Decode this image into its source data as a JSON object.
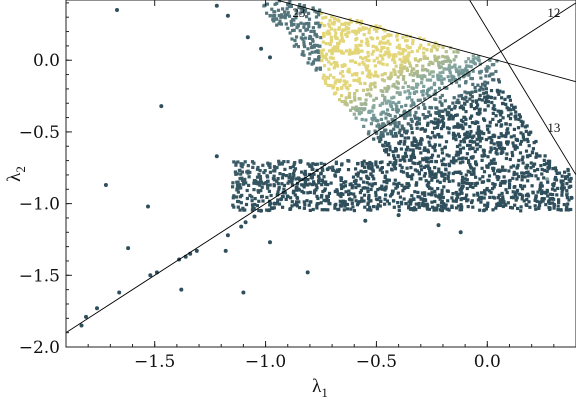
{
  "chart_data": {
    "type": "scatter",
    "title": "",
    "xlabel": "λ",
    "xlabel_subscript": "1",
    "ylabel": "λ",
    "ylabel_subscript": "2",
    "xlim": [
      -1.9,
      0.4
    ],
    "ylim": [
      -2.0,
      0.42
    ],
    "grid": false,
    "legend": "none",
    "x_ticks": [
      {
        "value": -1.5,
        "label": "−1.5"
      },
      {
        "value": -1.0,
        "label": "−1.0"
      },
      {
        "value": -0.5,
        "label": "−0.5"
      },
      {
        "value": 0.0,
        "label": "0.0"
      }
    ],
    "y_ticks": [
      {
        "value": 0.0,
        "label": "0.0"
      },
      {
        "value": -0.5,
        "label": "−0.5"
      },
      {
        "value": -1.0,
        "label": "−1.0"
      },
      {
        "value": -1.5,
        "label": "−1.5"
      },
      {
        "value": -2.0,
        "label": "−2.0"
      }
    ],
    "colors": {
      "point_dark": "#2f4f5c",
      "point_mid": "#7fa3a0",
      "point_light": "#e3d679",
      "line": "#000000"
    },
    "reference_lines": [
      {
        "label": "23",
        "from": [
          -1.9,
          -1.9
        ],
        "to": [
          0.4,
          0.4
        ],
        "label_at": [
          -0.85,
          0.3
        ]
      },
      {
        "label": "12",
        "from": [
          -0.95,
          0.42
        ],
        "to": [
          0.4,
          -0.15
        ],
        "label_at": [
          0.3,
          0.3
        ]
      },
      {
        "label": "13",
        "from": [
          -0.08,
          0.42
        ],
        "to": [
          0.4,
          -0.8
        ],
        "label_at": [
          0.3,
          -0.5
        ]
      }
    ],
    "points": [
      {
        "x": -1.83,
        "y": -1.85,
        "tone": 0
      },
      {
        "x": -1.81,
        "y": -1.79,
        "tone": 0
      },
      {
        "x": -1.76,
        "y": -1.73,
        "tone": 0
      },
      {
        "x": -1.66,
        "y": -1.62,
        "tone": 0
      },
      {
        "x": -1.52,
        "y": -1.5,
        "tone": 0
      },
      {
        "x": -1.49,
        "y": -1.48,
        "tone": 0
      },
      {
        "x": -1.39,
        "y": -1.39,
        "tone": 0
      },
      {
        "x": -1.36,
        "y": -1.37,
        "tone": 0
      },
      {
        "x": -1.34,
        "y": -1.35,
        "tone": 0
      },
      {
        "x": -1.31,
        "y": -1.33,
        "tone": 0
      },
      {
        "x": -1.17,
        "y": -1.22,
        "tone": 0
      },
      {
        "x": -1.11,
        "y": -1.16,
        "tone": 0
      },
      {
        "x": -1.09,
        "y": -1.13,
        "tone": 0
      },
      {
        "x": -1.05,
        "y": -1.09,
        "tone": 0
      },
      {
        "x": -1.02,
        "y": -1.05,
        "tone": 0
      },
      {
        "x": -0.96,
        "y": -1.0,
        "tone": 0
      },
      {
        "x": -0.93,
        "y": -0.97,
        "tone": 0
      },
      {
        "x": -0.9,
        "y": -0.95,
        "tone": 0
      },
      {
        "x": -0.86,
        "y": -0.9,
        "tone": 0
      },
      {
        "x": -0.82,
        "y": -0.86,
        "tone": 0
      },
      {
        "x": -0.79,
        "y": -0.82,
        "tone": 0
      },
      {
        "x": -0.75,
        "y": -0.79,
        "tone": 0
      },
      {
        "x": -0.72,
        "y": -0.76,
        "tone": 0
      },
      {
        "x": -1.67,
        "y": 0.35,
        "tone": 0
      },
      {
        "x": -1.47,
        "y": -0.32,
        "tone": 0
      },
      {
        "x": -1.72,
        "y": -0.87,
        "tone": 0
      },
      {
        "x": -1.53,
        "y": -1.02,
        "tone": 0
      },
      {
        "x": -1.62,
        "y": -1.31,
        "tone": 0
      },
      {
        "x": -1.38,
        "y": -1.6,
        "tone": 0
      },
      {
        "x": -1.18,
        "y": -1.33,
        "tone": 0
      },
      {
        "x": -1.1,
        "y": -1.62,
        "tone": 0
      },
      {
        "x": -0.81,
        "y": -1.48,
        "tone": 0
      },
      {
        "x": -0.98,
        "y": -1.27,
        "tone": 0
      },
      {
        "x": -1.22,
        "y": -0.67,
        "tone": 0
      },
      {
        "x": -0.92,
        "y": -0.8,
        "tone": 0
      },
      {
        "x": -1.22,
        "y": 0.38,
        "tone": 0
      },
      {
        "x": -1.17,
        "y": 0.31,
        "tone": 0
      },
      {
        "x": -1.08,
        "y": 0.16,
        "tone": 0
      },
      {
        "x": -1.02,
        "y": 0.08,
        "tone": 0
      },
      {
        "x": -0.98,
        "y": 0.02,
        "tone": 0
      },
      {
        "x": -0.55,
        "y": -1.12,
        "tone": 0
      },
      {
        "x": -0.4,
        "y": -1.08,
        "tone": 0
      },
      {
        "x": -0.22,
        "y": -1.15,
        "tone": 0
      },
      {
        "x": -0.12,
        "y": -1.2,
        "tone": 0
      },
      {
        "x": -0.62,
        "y": -0.97,
        "tone": 0
      },
      {
        "x": 0.05,
        "y": -1.0,
        "tone": 0
      },
      {
        "x": 0.12,
        "y": -0.95,
        "tone": 1
      },
      {
        "x": 0.36,
        "y": -0.93,
        "tone": 1
      },
      {
        "x": 0.38,
        "y": -0.96,
        "tone": 0
      },
      {
        "x": 0.27,
        "y": -0.83,
        "tone": 1
      }
    ]
  }
}
